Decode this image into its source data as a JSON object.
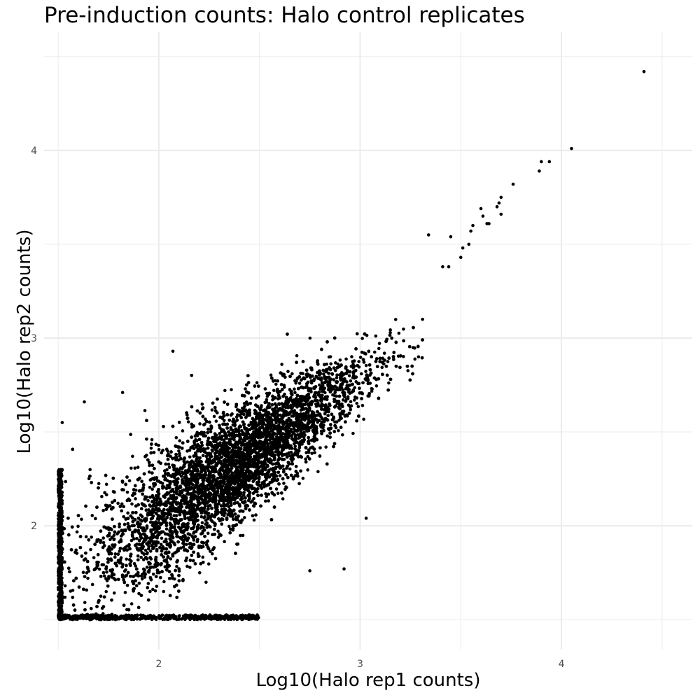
{
  "chart_data": {
    "type": "scatter",
    "title": "Pre-induction counts: Halo control replicates",
    "xlabel": "Log10(Halo rep1 counts)",
    "ylabel": "Log10(Halo rep2 counts)",
    "xlim": [
      1.43,
      4.65
    ],
    "ylim": [
      1.34,
      4.63
    ],
    "x_ticks": [
      2,
      3,
      4
    ],
    "x_tick_labels": [
      "2",
      "3",
      "4"
    ],
    "y_ticks": [
      2,
      3,
      4
    ],
    "y_tick_labels": [
      "2",
      "3",
      "4"
    ],
    "grid": true,
    "point_color": "#000000",
    "bulk_distribution": {
      "description_x_range": [
        1.5,
        3.38
      ],
      "description_y_range": [
        1.5,
        3.4
      ]
    },
    "outliers": [
      {
        "x": 4.41,
        "y": 4.42
      },
      {
        "x": 4.05,
        "y": 4.01
      },
      {
        "x": 3.94,
        "y": 3.94
      },
      {
        "x": 3.9,
        "y": 3.94
      },
      {
        "x": 3.89,
        "y": 3.89
      },
      {
        "x": 3.76,
        "y": 3.82
      },
      {
        "x": 3.7,
        "y": 3.75
      },
      {
        "x": 3.69,
        "y": 3.72
      },
      {
        "x": 3.7,
        "y": 3.66
      },
      {
        "x": 3.68,
        "y": 3.7
      },
      {
        "x": 3.64,
        "y": 3.61
      },
      {
        "x": 3.63,
        "y": 3.61
      },
      {
        "x": 3.6,
        "y": 3.69
      },
      {
        "x": 3.61,
        "y": 3.65
      },
      {
        "x": 3.56,
        "y": 3.6
      },
      {
        "x": 3.55,
        "y": 3.57
      },
      {
        "x": 3.54,
        "y": 3.5
      },
      {
        "x": 3.51,
        "y": 3.48
      },
      {
        "x": 3.5,
        "y": 3.43
      },
      {
        "x": 3.45,
        "y": 3.54
      },
      {
        "x": 3.44,
        "y": 3.38
      },
      {
        "x": 3.41,
        "y": 3.38
      },
      {
        "x": 3.34,
        "y": 3.55
      },
      {
        "x": 3.31,
        "y": 3.1
      },
      {
        "x": 3.29,
        "y": 2.9
      },
      {
        "x": 2.92,
        "y": 1.77
      },
      {
        "x": 2.75,
        "y": 1.76
      },
      {
        "x": 3.03,
        "y": 2.04
      },
      {
        "x": 2.07,
        "y": 2.93
      },
      {
        "x": 1.63,
        "y": 2.66
      },
      {
        "x": 1.52,
        "y": 2.55
      },
      {
        "x": 1.82,
        "y": 2.71
      }
    ]
  }
}
